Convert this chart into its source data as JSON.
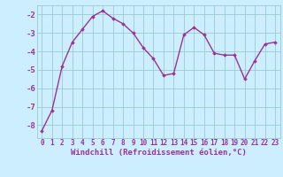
{
  "hours": [
    0,
    1,
    2,
    3,
    4,
    5,
    6,
    7,
    8,
    9,
    10,
    11,
    12,
    13,
    14,
    15,
    16,
    17,
    18,
    19,
    20,
    21,
    22,
    23
  ],
  "values": [
    -8.3,
    -7.2,
    -4.8,
    -3.5,
    -2.8,
    -2.1,
    -1.8,
    -2.2,
    -2.5,
    -3.0,
    -3.8,
    -4.4,
    -5.3,
    -5.2,
    -3.1,
    -2.7,
    -3.1,
    -4.1,
    -4.2,
    -4.2,
    -5.5,
    -4.5,
    -3.6,
    -3.5
  ],
  "line_color": "#993399",
  "marker": "D",
  "marker_size": 1.8,
  "line_width": 1.0,
  "bg_color": "#cceeff",
  "grid_color": "#99cccc",
  "tick_color": "#993399",
  "xlabel": "Windchill (Refroidissement éolien,°C)",
  "xlabel_color": "#993399",
  "ylim": [
    -8.7,
    -1.5
  ],
  "yticks": [
    -8,
    -7,
    -6,
    -5,
    -4,
    -3,
    -2
  ],
  "xlim": [
    -0.5,
    23.5
  ],
  "xticks": [
    0,
    1,
    2,
    3,
    4,
    5,
    6,
    7,
    8,
    9,
    10,
    11,
    12,
    13,
    14,
    15,
    16,
    17,
    18,
    19,
    20,
    21,
    22,
    23
  ],
  "xtick_labels": [
    "0",
    "1",
    "2",
    "3",
    "4",
    "5",
    "6",
    "7",
    "8",
    "9",
    "10",
    "11",
    "12",
    "13",
    "14",
    "15",
    "16",
    "17",
    "18",
    "19",
    "20",
    "21",
    "22",
    "23"
  ],
  "tick_fontsize": 5.5,
  "xlabel_fontsize": 6.5
}
